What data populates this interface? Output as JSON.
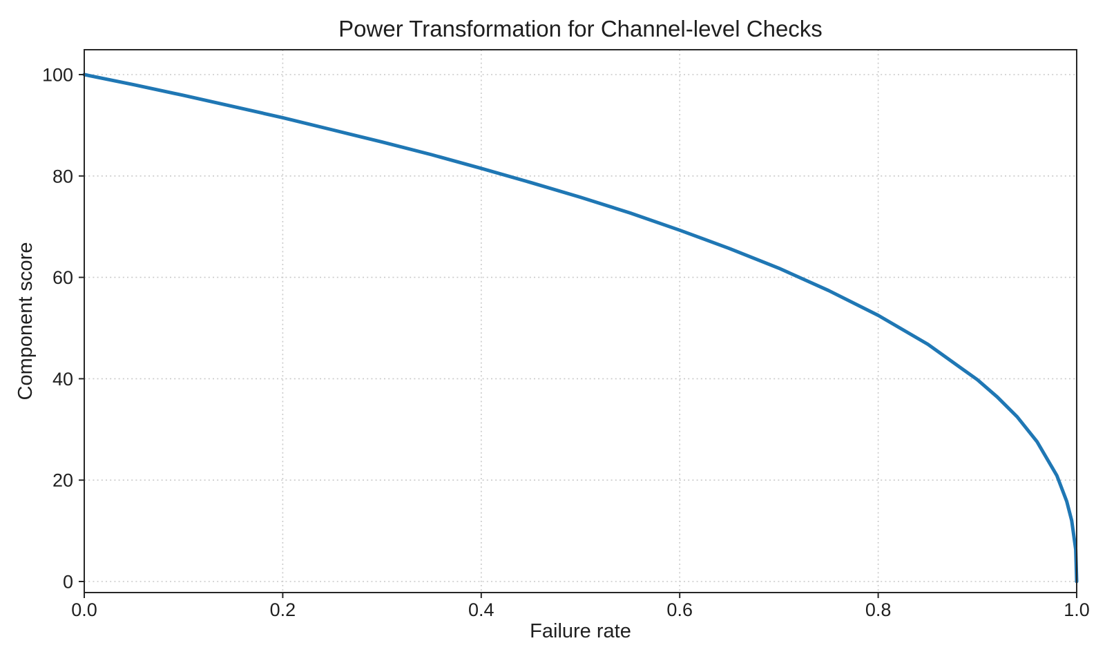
{
  "figure": {
    "background": "#ffffff"
  },
  "chart_data": {
    "type": "line",
    "title": "Power Transformation for Channel-level Checks",
    "xlabel": "Failure rate",
    "ylabel": "Component score",
    "xlim": [
      0,
      1
    ],
    "ylim": [
      0,
      100
    ],
    "x_ticks": [
      0.0,
      0.2,
      0.4,
      0.6,
      0.8,
      1.0
    ],
    "x_tick_labels": [
      "0.0",
      "0.2",
      "0.4",
      "0.6",
      "0.8",
      "1.0"
    ],
    "y_ticks": [
      0,
      20,
      40,
      60,
      80,
      100
    ],
    "y_tick_labels": [
      "0",
      "20",
      "40",
      "60",
      "80",
      "100"
    ],
    "grid": "dotted",
    "legend": "none",
    "colors": {
      "line": "#1f77b4",
      "grid": "#c9c9c9",
      "spine": "#262626",
      "text": "#1f1f1f"
    },
    "series": [
      {
        "name": "component-score-curve",
        "x": [
          0,
          0.05,
          0.1,
          0.15,
          0.2,
          0.25,
          0.3,
          0.35,
          0.4,
          0.45,
          0.5,
          0.55,
          0.6,
          0.65,
          0.7,
          0.75,
          0.8,
          0.85,
          0.9,
          0.92,
          0.94,
          0.96,
          0.98,
          0.99,
          0.995,
          0.999,
          1.0
        ],
        "y": [
          100,
          98.0,
          95.9,
          93.7,
          91.5,
          89.1,
          86.7,
          84.2,
          81.5,
          78.7,
          75.8,
          72.7,
          69.3,
          65.7,
          61.8,
          57.4,
          52.5,
          46.8,
          39.8,
          36.4,
          32.5,
          27.6,
          20.9,
          15.8,
          12.0,
          6.3,
          0
        ]
      }
    ]
  }
}
